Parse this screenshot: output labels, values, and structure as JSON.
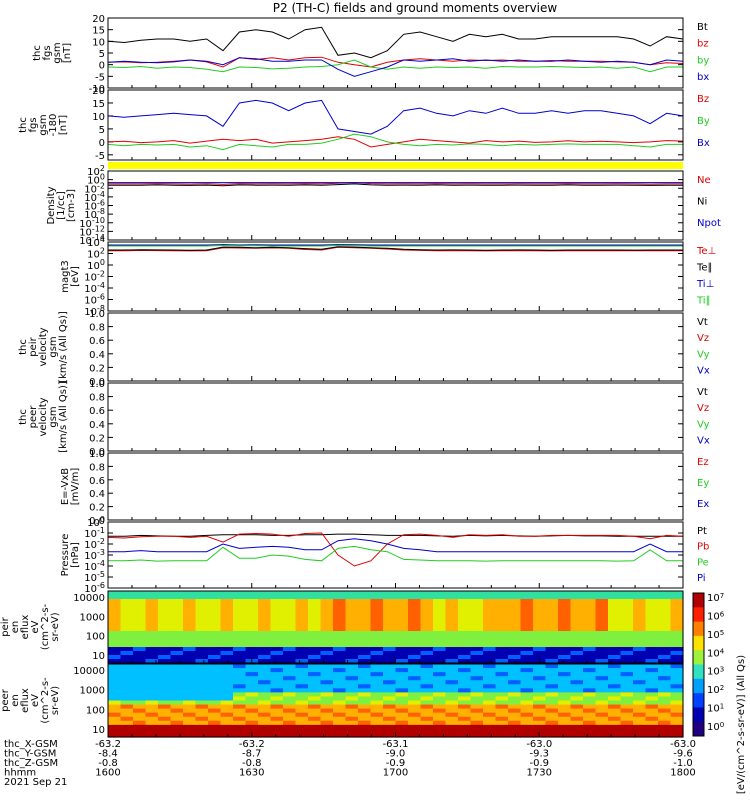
{
  "title": "P2 (TH-C) fields and ground moments overview",
  "colors": {
    "black": "#000000",
    "red": "#e00000",
    "green": "#22cc22",
    "blue": "#0000cc",
    "yellow": "#ffff00"
  },
  "chart_data": [
    {
      "type": "line",
      "panel": "fgs_gsm",
      "ylabel_lines": [
        "thc",
        "fgs",
        "gsm",
        "[nT]"
      ],
      "ylim": [
        -10,
        20
      ],
      "yticks": [
        -10,
        -5,
        0,
        5,
        10,
        15,
        20
      ],
      "series": [
        {
          "name": "Bt",
          "color": "black",
          "values": [
            10,
            9.5,
            10.5,
            11,
            11,
            10,
            11,
            6,
            14,
            15,
            14,
            11,
            15,
            16,
            4,
            5,
            3,
            6,
            13,
            14,
            12,
            10,
            13,
            12,
            13,
            11,
            11,
            12,
            12,
            12,
            12,
            12,
            11,
            8,
            12,
            11
          ]
        },
        {
          "name": "bz",
          "color": "red",
          "values": [
            1,
            1.2,
            0.8,
            1,
            1.5,
            2,
            1.2,
            -1,
            3,
            2.2,
            3,
            2,
            3,
            3.2,
            1,
            0,
            -1,
            1,
            2,
            2.5,
            2,
            1.5,
            2,
            1.8,
            2,
            1.5,
            1.5,
            1.8,
            1.5,
            1.5,
            1.5,
            1.2,
            1,
            0,
            0.8,
            0.5
          ]
        },
        {
          "name": "by",
          "color": "green",
          "values": [
            -1,
            -1.2,
            -0.8,
            -1.5,
            -1,
            -1.2,
            -2,
            -3,
            -1,
            -1.2,
            -1.8,
            -1.5,
            -1,
            -0.8,
            0,
            2,
            -1,
            -2,
            -1,
            -1.5,
            -1,
            -1.2,
            -1,
            -1.5,
            -0.8,
            -1,
            -1,
            -0.8,
            -1,
            -1.2,
            -1,
            -1.5,
            -1,
            -3,
            -1,
            -1
          ]
        },
        {
          "name": "bx",
          "color": "blue",
          "values": [
            1,
            1.5,
            1,
            0.8,
            1.2,
            2,
            1.5,
            0,
            3,
            2.5,
            1.5,
            1.5,
            2,
            2,
            -2,
            -5,
            -3,
            -1,
            2,
            1.5,
            2,
            2.5,
            1.5,
            2,
            1.5,
            2,
            1.5,
            1.5,
            2,
            1.5,
            1,
            1.5,
            1,
            0,
            2,
            1.5
          ]
        }
      ]
    },
    {
      "type": "line",
      "panel": "fgs_gsm_-180",
      "ylabel_lines": [
        "thc",
        "fgs",
        "gsm",
        "-180",
        "[nT]"
      ],
      "ylim": [
        -7,
        20
      ],
      "yticks": [
        -5,
        0,
        5,
        10,
        15,
        20
      ],
      "series": [
        {
          "name": "Bz",
          "color": "red",
          "values": [
            0,
            0.2,
            -0.3,
            0,
            0.5,
            -0.5,
            0.3,
            1,
            0.5,
            1,
            -0.5,
            0,
            0.5,
            1,
            2,
            1,
            -2,
            -1,
            0,
            1,
            0.5,
            0,
            -0.5,
            0.5,
            0,
            0.3,
            -0.2,
            0,
            0.4,
            0,
            0.2,
            0,
            -0.3,
            0,
            0.5,
            0.3
          ]
        },
        {
          "name": "By",
          "color": "green",
          "values": [
            -1,
            -1.5,
            -1,
            -1.2,
            -1,
            -2,
            -1.5,
            -3,
            -1,
            -1.5,
            -2,
            -1,
            -1,
            -0.5,
            1,
            3,
            2,
            0,
            -1,
            -1.5,
            -1,
            -1.2,
            -0.8,
            -1,
            -1.5,
            -1,
            -1.2,
            -1,
            -0.8,
            -1,
            -1,
            -1,
            -1.5,
            -2,
            -1,
            -1
          ]
        },
        {
          "name": "Bx",
          "color": "blue",
          "values": [
            10,
            9.5,
            10,
            10.5,
            11,
            10.5,
            10,
            6,
            15,
            16,
            15,
            12,
            15,
            16,
            5,
            4,
            3,
            6,
            12,
            13,
            11,
            10,
            12,
            11,
            13,
            11,
            11,
            12,
            11,
            12,
            12,
            11,
            10,
            7,
            11,
            10
          ]
        }
      ]
    },
    {
      "type": "line",
      "panel": "density",
      "scale": "log",
      "ylabel_lines": [
        "Density",
        "[1/cc]",
        "[cm-3]"
      ],
      "ylim": [
        1e-14,
        100.0
      ],
      "yticks": [
        "10^2",
        "10^0",
        "10^-2",
        "10^-4",
        "10^-6",
        "10^-8",
        "10^-10",
        "10^-12",
        "10^-14"
      ],
      "series": [
        {
          "name": "Ne",
          "color": "red",
          "values": [
            0.1,
            0.1,
            0.1,
            0.12,
            0.1,
            0.09,
            0.11,
            0.08,
            0.12,
            0.1,
            0.11,
            0.1,
            0.12,
            0.1,
            0.15,
            0.2,
            0.12,
            0.1,
            0.11,
            0.1,
            0.12,
            0.1,
            0.11,
            0.1,
            0.1,
            0.11,
            0.1,
            0.1,
            0.12,
            0.1,
            0.1,
            0.11,
            0.1,
            0.09,
            0.1,
            0.1
          ]
        },
        {
          "name": "Ni",
          "color": "black",
          "values": [
            0.05,
            0.05,
            0.05,
            0.06,
            0.05,
            0.045,
            0.055,
            0.04,
            0.06,
            0.05,
            0.055,
            0.05,
            0.06,
            0.05,
            0.07,
            0.1,
            0.06,
            0.05,
            0.055,
            0.05,
            0.06,
            0.05,
            0.055,
            0.05,
            0.05,
            0.055,
            0.05,
            0.05,
            0.06,
            0.05,
            0.05,
            0.055,
            0.05,
            0.045,
            0.05,
            0.05
          ]
        },
        {
          "name": "Npot",
          "color": "blue",
          "values": [
            0.2,
            0.2,
            0.2,
            0.2,
            0.2,
            0.2,
            0.2,
            0.2,
            0.2,
            0.2,
            0.2,
            0.2,
            0.2,
            0.2,
            0.2,
            0.2,
            0.2,
            0.2,
            0.2,
            0.2,
            0.2,
            0.2,
            0.2,
            0.2,
            0.2,
            0.2,
            0.2,
            0.2,
            0.2,
            0.2,
            0.2,
            0.2,
            0.2,
            0.2,
            0.2,
            0.2
          ]
        }
      ]
    },
    {
      "type": "line",
      "panel": "magt3",
      "scale": "log",
      "ylabel_lines": [
        "magt3",
        "[eV]"
      ],
      "ylim": [
        1e-08,
        10000.0
      ],
      "yticks": [
        "10^4",
        "10^2",
        "10^0",
        "10^-2",
        "10^-4",
        "10^-6",
        "10^-8"
      ],
      "series": [
        {
          "name": "Te⊥",
          "color": "red",
          "values": [
            300,
            300,
            350,
            320,
            300,
            280,
            310,
            1000,
            900,
            800,
            950,
            800,
            500,
            400,
            1200,
            1000,
            800,
            600,
            400,
            350,
            300,
            320,
            300,
            280,
            300,
            320,
            300,
            280,
            300,
            310,
            300,
            300,
            290,
            300,
            310,
            300
          ]
        },
        {
          "name": "Te∥",
          "color": "black",
          "values": [
            400,
            400,
            450,
            420,
            400,
            380,
            410,
            1300,
            1200,
            1000,
            1200,
            1000,
            700,
            550,
            1500,
            1300,
            1000,
            800,
            550,
            450,
            400,
            420,
            400,
            380,
            400,
            420,
            400,
            380,
            400,
            410,
            400,
            400,
            390,
            400,
            410,
            400
          ]
        },
        {
          "name": "Ti⊥",
          "color": "blue",
          "values": [
            3000,
            3000,
            3000,
            3000,
            3000,
            3000,
            3000,
            3500,
            3000,
            3200,
            3000,
            3000,
            3000,
            3000,
            3500,
            3200,
            3000,
            3000,
            3000,
            3000,
            3000,
            3000,
            3000,
            3000,
            3000,
            3000,
            3000,
            3000,
            3000,
            3000,
            3000,
            3000,
            3000,
            3000,
            3000,
            3000
          ]
        },
        {
          "name": "Ti∥",
          "color": "green",
          "values": [
            2000,
            2000,
            2000,
            2000,
            2000,
            2000,
            2000,
            2500,
            2200,
            2200,
            2000,
            2000,
            2000,
            2000,
            2500,
            2200,
            2000,
            2000,
            2000,
            2000,
            2000,
            2000,
            2000,
            2000,
            2000,
            2000,
            2000,
            2000,
            2000,
            2000,
            2000,
            2000,
            2000,
            2000,
            2000,
            2000
          ]
        }
      ]
    },
    {
      "type": "line",
      "panel": "peir_velocity",
      "ylabel_lines": [
        "thc",
        "peir",
        "velocity",
        "gsm",
        "[km/s (All Qs)]"
      ],
      "ylim": [
        0,
        1
      ],
      "yticks": [
        "0.0",
        "0.2",
        "0.4",
        "0.6",
        "0.8",
        "1.0"
      ],
      "series": [
        {
          "name": "Vt",
          "color": "black"
        },
        {
          "name": "Vz",
          "color": "red"
        },
        {
          "name": "Vy",
          "color": "green"
        },
        {
          "name": "Vx",
          "color": "blue"
        }
      ]
    },
    {
      "type": "line",
      "panel": "peer_velocity",
      "ylabel_lines": [
        "thc",
        "peer",
        "velocity",
        "gsm",
        "[km/s (All Qs)]"
      ],
      "ylim": [
        0,
        1
      ],
      "yticks": [
        "0.0",
        "0.2",
        "0.4",
        "0.6",
        "0.8",
        "1.0"
      ],
      "series": [
        {
          "name": "Vt",
          "color": "black"
        },
        {
          "name": "Vz",
          "color": "red"
        },
        {
          "name": "Vy",
          "color": "green"
        },
        {
          "name": "Vx",
          "color": "blue"
        }
      ]
    },
    {
      "type": "line",
      "panel": "efield",
      "ylabel_lines": [
        "E=-VxB",
        "[mV/m]"
      ],
      "ylim": [
        0,
        1
      ],
      "yticks": [
        "0.0",
        "0.2",
        "0.4",
        "0.6",
        "0.8",
        "1.0"
      ],
      "series": [
        {
          "name": "Ez",
          "color": "red"
        },
        {
          "name": "Ey",
          "color": "green"
        },
        {
          "name": "Ex",
          "color": "blue"
        }
      ]
    },
    {
      "type": "line",
      "panel": "pressure",
      "scale": "log",
      "ylabel_lines": [
        "Pressure",
        "[nPa]"
      ],
      "ylim": [
        1e-06,
        1
      ],
      "yticks": [
        "10^0",
        "10^-1",
        "10^-2",
        "10^-3",
        "10^-4",
        "10^-5",
        "10^-6"
      ],
      "series": [
        {
          "name": "Pt",
          "color": "black",
          "values": [
            0.05,
            0.05,
            0.06,
            0.055,
            0.05,
            0.05,
            0.06,
            0.07,
            0.07,
            0.07,
            0.06,
            0.06,
            0.07,
            0.07,
            0.08,
            0.08,
            0.07,
            0.06,
            0.06,
            0.06,
            0.055,
            0.05,
            0.06,
            0.055,
            0.06,
            0.055,
            0.05,
            0.055,
            0.06,
            0.055,
            0.055,
            0.05,
            0.05,
            0.05,
            0.05,
            0.05
          ]
        },
        {
          "name": "Pb",
          "color": "red",
          "values": [
            0.04,
            0.035,
            0.045,
            0.05,
            0.05,
            0.04,
            0.05,
            0.015,
            0.08,
            0.09,
            0.08,
            0.05,
            0.09,
            0.1,
            0.001,
            0.0001,
            0.0003,
            0.01,
            0.07,
            0.08,
            0.06,
            0.04,
            0.07,
            0.06,
            0.07,
            0.05,
            0.05,
            0.06,
            0.06,
            0.06,
            0.06,
            0.06,
            0.05,
            0.03,
            0.06,
            0.05
          ]
        },
        {
          "name": "Pe",
          "color": "green",
          "values": [
            0.0003,
            0.0003,
            0.00035,
            0.00028,
            0.0003,
            0.0003,
            0.0003,
            0.005,
            0.0005,
            0.0005,
            0.001,
            0.0008,
            0.0004,
            0.0003,
            0.004,
            0.006,
            0.003,
            0.002,
            0.0004,
            0.00035,
            0.0003,
            0.0003,
            0.0003,
            0.00028,
            0.0003,
            0.0003,
            0.0003,
            0.0003,
            0.0003,
            0.0003,
            0.0003,
            0.00028,
            0.0003,
            0.003,
            0.0003,
            0.0003
          ]
        },
        {
          "name": "Pi",
          "color": "blue",
          "values": [
            0.002,
            0.002,
            0.0025,
            0.002,
            0.002,
            0.002,
            0.002,
            0.01,
            0.004,
            0.005,
            0.006,
            0.005,
            0.003,
            0.003,
            0.02,
            0.03,
            0.02,
            0.01,
            0.004,
            0.003,
            0.002,
            0.002,
            0.002,
            0.002,
            0.002,
            0.002,
            0.002,
            0.002,
            0.002,
            0.002,
            0.002,
            0.002,
            0.002,
            0.01,
            0.002,
            0.002
          ]
        }
      ]
    },
    {
      "type": "heatmap",
      "panel": "peir_en_eflux",
      "ylabel_lines": [
        "thc",
        "peir",
        "en",
        "eflux",
        "eV",
        "(cm^2-s-",
        "sr-eV)"
      ],
      "yticks": [
        "10",
        "100",
        "1000",
        "10000"
      ]
    },
    {
      "type": "heatmap",
      "panel": "peer_en_eflux",
      "ylabel_lines": [
        "thc",
        "peer",
        "en",
        "eflux",
        "eV",
        "(cm^2-s-",
        "sr-eV)"
      ],
      "yticks": [
        "10",
        "100",
        "1000",
        "10000"
      ]
    }
  ],
  "colorbar": {
    "label": "[eV/(cm^2-s-sr-eV)] (All Qs)",
    "ticks": [
      "10^7",
      "10^6",
      "10^5",
      "10^4",
      "10^3",
      "10^2",
      "10^1",
      "10^0"
    ]
  },
  "axis": {
    "row_labels": [
      "thc_X-GSM",
      "thc_Y-GSM",
      "thc_Z-GSM",
      "hhmm",
      "2021 Sep 21"
    ],
    "columns": [
      [
        "-63.2",
        "-8.4",
        "-0.8",
        "1600"
      ],
      [
        "-63.2",
        "-8.7",
        "-0.8",
        "1630"
      ],
      [
        "-63.1",
        "-9.0",
        "-0.9",
        "1700"
      ],
      [
        "-63.0",
        "-9.3",
        "-0.9",
        "1730"
      ],
      [
        "-63.0",
        "-9.6",
        "-1.0",
        "1800"
      ]
    ]
  }
}
